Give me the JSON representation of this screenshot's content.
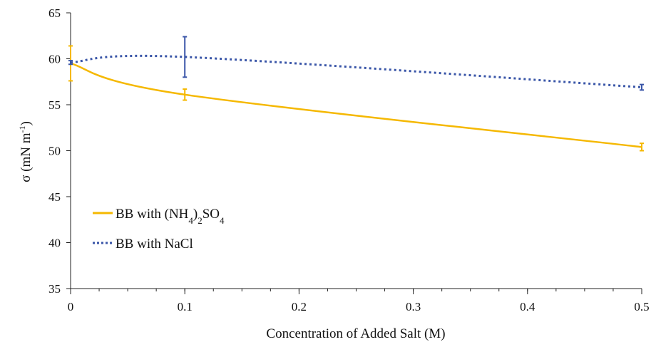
{
  "chart_data": {
    "type": "line",
    "xlabel": "Concentration of Added Salt (M)",
    "ylabel": {
      "main": "σ (mN m",
      "sup": "-1",
      "close": ")"
    },
    "xlim": [
      0,
      0.5
    ],
    "ylim": [
      35,
      65
    ],
    "x_ticks": [
      "0",
      "0.1",
      "0.2",
      "0.3",
      "0.4",
      "0.5"
    ],
    "x_tick_values": [
      0,
      0.1,
      0.2,
      0.3,
      0.4,
      0.5
    ],
    "y_ticks": [
      "35",
      "40",
      "45",
      "50",
      "55",
      "60",
      "65"
    ],
    "y_tick_values": [
      35,
      40,
      45,
      50,
      55,
      60,
      65
    ],
    "x_minor_step": 0.025,
    "grid": false,
    "legend_position": "bottom-left",
    "series": [
      {
        "name_parts": {
          "prefix": "BB with (NH",
          "sub1": "4",
          "mid": ")",
          "sub2": "2",
          "mid2": "SO",
          "sub3": "4"
        },
        "color": "#F5B800",
        "style": "solid",
        "x": [
          0,
          0.1,
          0.5
        ],
        "y": [
          59.5,
          56.1,
          50.4
        ],
        "error": [
          1.9,
          0.6,
          0.4
        ]
      },
      {
        "name": "BB with NaCl",
        "color": "#3A56A8",
        "style": "dotted",
        "x": [
          0,
          0.1,
          0.5
        ],
        "y": [
          59.6,
          60.2,
          56.9
        ],
        "error": [
          0.2,
          2.2,
          0.3
        ]
      }
    ]
  }
}
